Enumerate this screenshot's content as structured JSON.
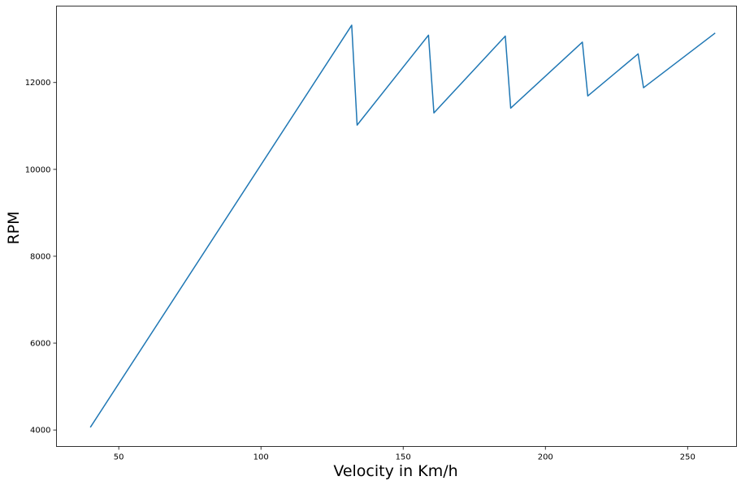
{
  "chart_data": {
    "type": "line",
    "title": "",
    "xlabel": "Velocity in Km/h",
    "ylabel": "RPM",
    "xlim": [
      28.1,
      267.2
    ],
    "ylim": [
      3620,
      13760
    ],
    "xticks": [
      50,
      100,
      150,
      200,
      250
    ],
    "yticks": [
      4000,
      6000,
      8000,
      10000,
      12000
    ],
    "grid": false,
    "legend": "none",
    "series": [
      {
        "color": "#1f77b4",
        "x": [
          40.0,
          131.9,
          133.8,
          158.9,
          160.8,
          185.9,
          187.8,
          213.0,
          214.9,
          232.6,
          234.5,
          259.7
        ],
        "y": [
          4060,
          13320,
          11020,
          13090,
          11300,
          13070,
          11410,
          12930,
          11690,
          12660,
          11880,
          13140
        ]
      }
    ]
  }
}
